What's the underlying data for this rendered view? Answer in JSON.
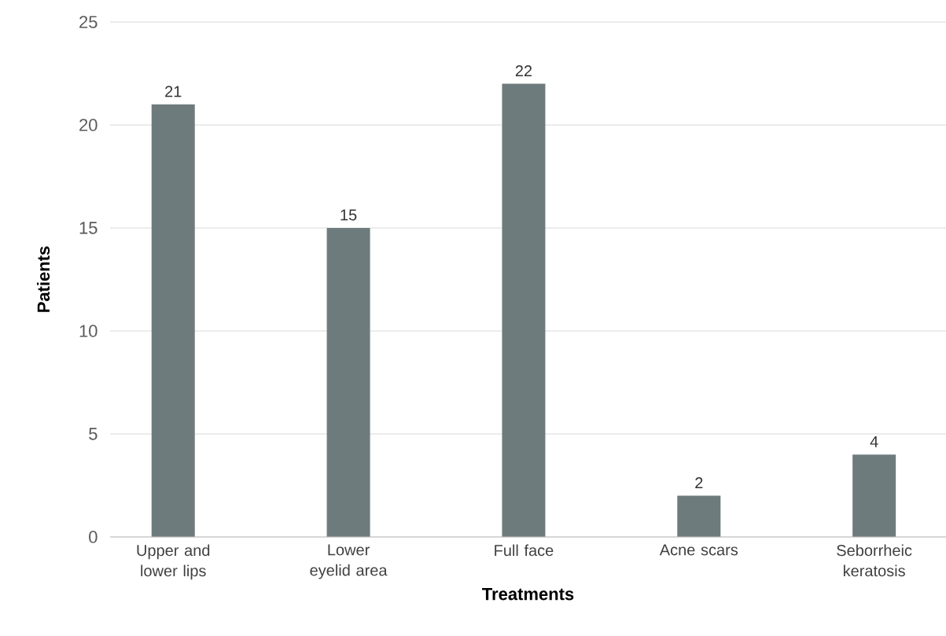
{
  "chart_data": {
    "type": "bar",
    "xlabel": "Treatments",
    "ylabel": "Patients",
    "categories": [
      "Upper and lower lips",
      "Lower eyelid area",
      "Full face",
      "Acne scars",
      "Seborrheic keratosis"
    ],
    "values": [
      21,
      15,
      22,
      2,
      4
    ],
    "color": "#6e7b7c",
    "ylim": [
      0,
      25
    ],
    "yticks": [
      0,
      5,
      10,
      15,
      20,
      25
    ],
    "grid": "y",
    "data_labels": true
  }
}
